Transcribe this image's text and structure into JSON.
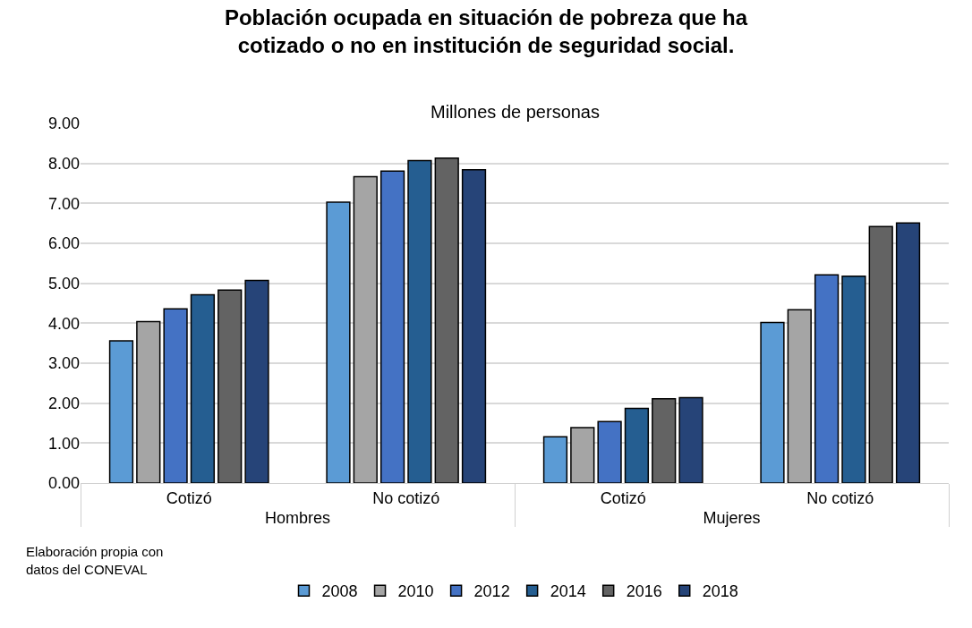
{
  "chart_data": {
    "type": "bar",
    "title": "Población ocupada en situación de pobreza que ha cotizado o no en institución de seguridad social.",
    "subtitle": "Millones de personas",
    "categories": [
      "Cotizó",
      "No cotizó",
      "Cotizó",
      "No cotizó"
    ],
    "annotations": [
      "Hombres",
      "Mujeres",
      "Elaboración propia con datos del CONEVAL"
    ],
    "series": [
      {
        "name": "2008",
        "color": "#5b9bd5",
        "values": [
          3.56,
          7.03,
          1.16,
          4.02
        ]
      },
      {
        "name": "2010",
        "color": "#a5a5a5",
        "values": [
          4.04,
          7.67,
          1.39,
          4.34
        ]
      },
      {
        "name": "2012",
        "color": "#4472c4",
        "values": [
          4.36,
          7.81,
          1.54,
          5.21
        ]
      },
      {
        "name": "2014",
        "color": "#255e91",
        "values": [
          4.71,
          8.07,
          1.87,
          5.18
        ]
      },
      {
        "name": "2016",
        "color": "#636363",
        "values": [
          4.83,
          8.13,
          2.11,
          6.42
        ]
      },
      {
        "name": "2018",
        "color": "#264478",
        "values": [
          5.07,
          7.84,
          2.14,
          6.51
        ]
      }
    ],
    "ylim": [
      0,
      9
    ],
    "yticks": [
      {
        "value": 0,
        "label": "0.00"
      },
      {
        "value": 1,
        "label": "1.00"
      },
      {
        "value": 2,
        "label": "2.00"
      },
      {
        "value": 3,
        "label": "3.00"
      },
      {
        "value": 4,
        "label": "4.00"
      },
      {
        "value": 5,
        "label": "5.00"
      },
      {
        "value": 6,
        "label": "6.00"
      },
      {
        "value": 7,
        "label": "7.00"
      },
      {
        "value": 8,
        "label": "8.00"
      },
      {
        "value": 9,
        "label": "9.00"
      }
    ],
    "grid": "y",
    "legend": "bottom"
  }
}
